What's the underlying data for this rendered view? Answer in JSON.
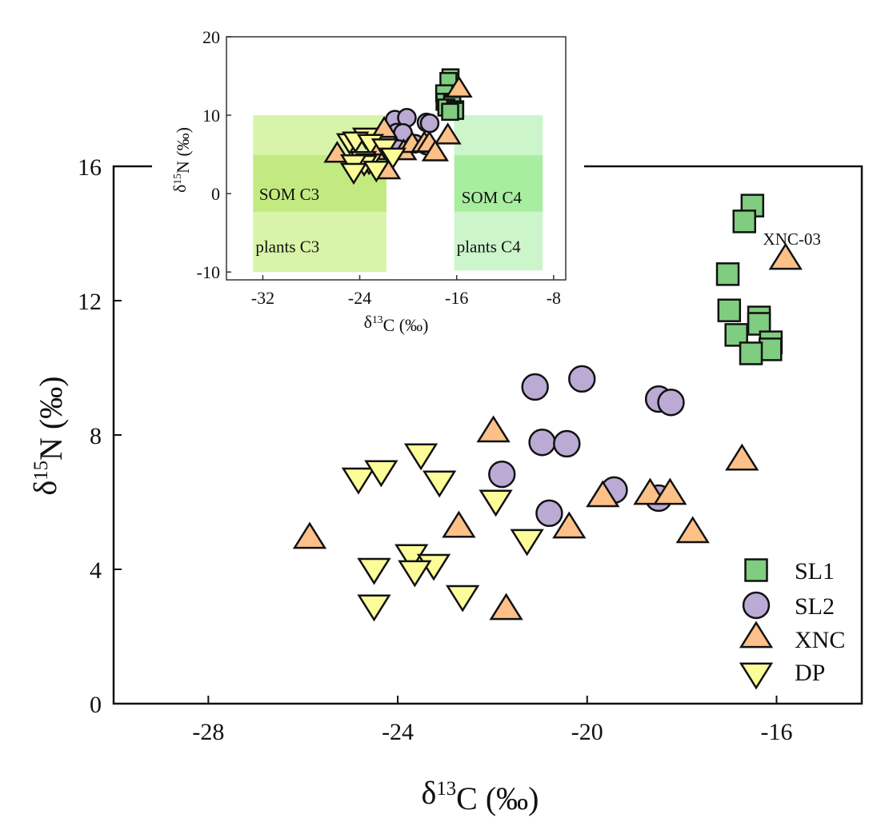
{
  "chart_data": [
    {
      "type": "scatter",
      "role": "main",
      "xlabel": {
        "base": "δ",
        "sup": "13",
        "rest": "C  (‰)"
      },
      "ylabel": {
        "base": "δ",
        "sup": "15",
        "rest": "N (‰)"
      },
      "xlim": [
        -30,
        -14.2
      ],
      "ylim": [
        0,
        16
      ],
      "xticks": [
        -28,
        -24,
        -20,
        -16
      ],
      "yticks": [
        0,
        4,
        8,
        12,
        16
      ],
      "grid": false,
      "legend_placement": "bottom-right",
      "annotation": {
        "text": "XNC-03",
        "x": -15.81,
        "y": 13.19
      },
      "series": [
        {
          "name": "SL1",
          "marker": "square",
          "color": "#80cc80",
          "points": [
            [
              -16.51,
              14.83
            ],
            [
              -16.68,
              14.36
            ],
            [
              -17.03,
              12.79
            ],
            [
              -17.0,
              11.71
            ],
            [
              -16.37,
              11.5
            ],
            [
              -16.37,
              11.31
            ],
            [
              -16.85,
              10.98
            ],
            [
              -16.12,
              10.76
            ],
            [
              -16.13,
              10.55
            ],
            [
              -16.54,
              10.43
            ]
          ]
        },
        {
          "name": "SL2",
          "marker": "circle",
          "color": "#bbaad4",
          "points": [
            [
              -21.1,
              9.43
            ],
            [
              -20.11,
              9.67
            ],
            [
              -18.49,
              9.07
            ],
            [
              -18.23,
              8.97
            ],
            [
              -20.95,
              7.78
            ],
            [
              -20.43,
              7.74
            ],
            [
              -21.8,
              6.83
            ],
            [
              -20.8,
              5.67
            ],
            [
              -19.43,
              6.36
            ],
            [
              -18.49,
              6.12
            ]
          ]
        },
        {
          "name": "XNC",
          "marker": "triangle-up",
          "color": "#fcc088",
          "points": [
            [
              -15.81,
              13.19
            ],
            [
              -16.73,
              7.21
            ],
            [
              -21.98,
              8.05
            ],
            [
              -25.86,
              4.88
            ],
            [
              -22.71,
              5.21
            ],
            [
              -20.38,
              5.19
            ],
            [
              -19.67,
              6.12
            ],
            [
              -18.67,
              6.19
            ],
            [
              -18.25,
              6.19
            ],
            [
              -21.71,
              2.76
            ],
            [
              -17.77,
              5.05
            ]
          ]
        },
        {
          "name": "DP",
          "marker": "triangle-down",
          "color": "#fcfc98",
          "points": [
            [
              -23.51,
              7.48
            ],
            [
              -24.83,
              6.76
            ],
            [
              -24.35,
              6.98
            ],
            [
              -23.12,
              6.67
            ],
            [
              -21.93,
              6.1
            ],
            [
              -21.27,
              4.93
            ],
            [
              -23.71,
              4.48
            ],
            [
              -23.24,
              4.19
            ],
            [
              -23.64,
              4.0
            ],
            [
              -24.5,
              4.07
            ],
            [
              -24.5,
              2.98
            ],
            [
              -22.63,
              3.26
            ]
          ]
        }
      ]
    },
    {
      "type": "scatter",
      "role": "inset",
      "xlabel": {
        "base": "δ",
        "sup": "13",
        "rest": "C (‰)"
      },
      "ylabel": {
        "base": "δ",
        "sup": "15",
        "rest": "N (‰)"
      },
      "xlim": [
        -35,
        -7
      ],
      "ylim": [
        -11,
        20
      ],
      "xticks": [
        -32,
        -24,
        -16,
        -8
      ],
      "yticks": [
        -10,
        0,
        10,
        20
      ],
      "grid": false,
      "same_points_as": "main",
      "regions": [
        {
          "label": "plants C3",
          "x": [
            -32.8,
            -21.8
          ],
          "y": [
            -10,
            10
          ],
          "color": "#d8f4a8"
        },
        {
          "label": "SOM C3",
          "x": [
            -32.8,
            -21.8
          ],
          "y": [
            -2.3,
            4.9
          ],
          "color": "#c3ea80"
        },
        {
          "label": "plants C4",
          "x": [
            -16.2,
            -8.9
          ],
          "y": [
            -9.8,
            10
          ],
          "color": "#ccf5cc"
        },
        {
          "label": "SOM C4",
          "x": [
            -16.2,
            -8.9
          ],
          "y": [
            -2.3,
            4.9
          ],
          "color": "#a8eea0"
        }
      ]
    }
  ]
}
